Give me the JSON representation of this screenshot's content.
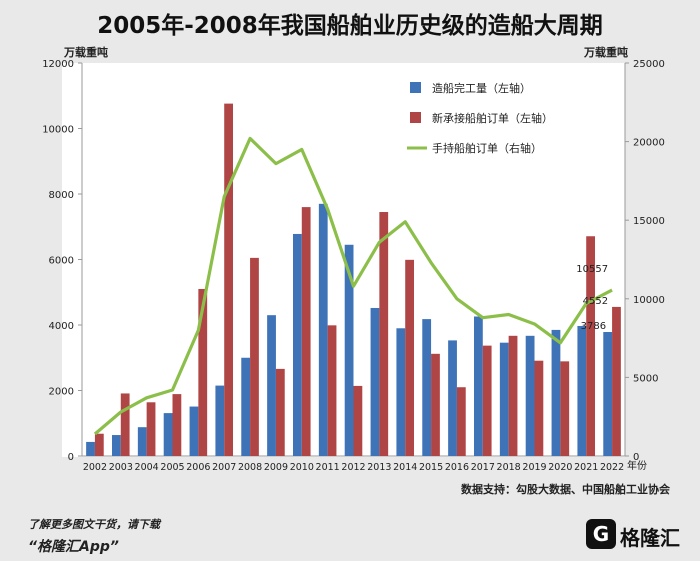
{
  "title": "2005年-2008年我国船舶业历史级的造船大周期",
  "left_unit": "万载重吨",
  "right_unit": "万载重吨",
  "x_unit": "年份",
  "source": "数据支持：勾股大数据、中国船舶工业协会",
  "footer": {
    "line1": "了解更多图文干货，请下载",
    "line2": "“格隆汇App”"
  },
  "logo": {
    "text": "格隆汇"
  },
  "chart_data": {
    "type": "bar",
    "categories": [
      "2002",
      "2003",
      "2004",
      "2005",
      "2006",
      "2007",
      "2008",
      "2009",
      "2010",
      "2011",
      "2012",
      "2013",
      "2014",
      "2015",
      "2016",
      "2017",
      "2018",
      "2019",
      "2020",
      "2021",
      "2022"
    ],
    "ylim_left": [
      0,
      12000
    ],
    "ylim_right": [
      0,
      25000
    ],
    "yticks_left": [
      "0",
      "2000",
      "4000",
      "6000",
      "8000",
      "10000",
      "12000"
    ],
    "yticks_right": [
      "0",
      "5000",
      "10000",
      "15000",
      "20000",
      "25000"
    ],
    "series": [
      {
        "name": "造船完工量（左轴）",
        "axis": "left",
        "kind": "bar",
        "color": "#3f73b7",
        "values": [
          430,
          640,
          880,
          1310,
          1510,
          2150,
          3000,
          4300,
          6780,
          7700,
          6450,
          4520,
          3900,
          4180,
          3530,
          4260,
          3460,
          3670,
          3850,
          3970,
          3786
        ]
      },
      {
        "name": "新承接船舶订单（左轴）",
        "axis": "left",
        "kind": "bar",
        "color": "#b04545",
        "values": [
          680,
          1910,
          1640,
          1890,
          5100,
          10760,
          6050,
          2660,
          7600,
          3990,
          2140,
          7450,
          5990,
          3120,
          2100,
          3370,
          3670,
          2910,
          2890,
          6710,
          4552
        ]
      },
      {
        "name": "手持船舶订单（右轴）",
        "axis": "right",
        "kind": "line",
        "color": "#8cbf4a",
        "values": [
          1400,
          2800,
          3700,
          4200,
          8000,
          16500,
          20200,
          18600,
          19500,
          15700,
          10800,
          13600,
          14900,
          12300,
          10000,
          8800,
          9000,
          8400,
          7200,
          9700,
          10557
        ]
      }
    ],
    "data_labels": [
      {
        "text": "10557",
        "series": 2,
        "index": 20
      },
      {
        "text": "4552",
        "series": 1,
        "index": 20
      },
      {
        "text": "3786",
        "series": 0,
        "index": 20
      }
    ],
    "legend_position": "top-right",
    "grid": false
  }
}
